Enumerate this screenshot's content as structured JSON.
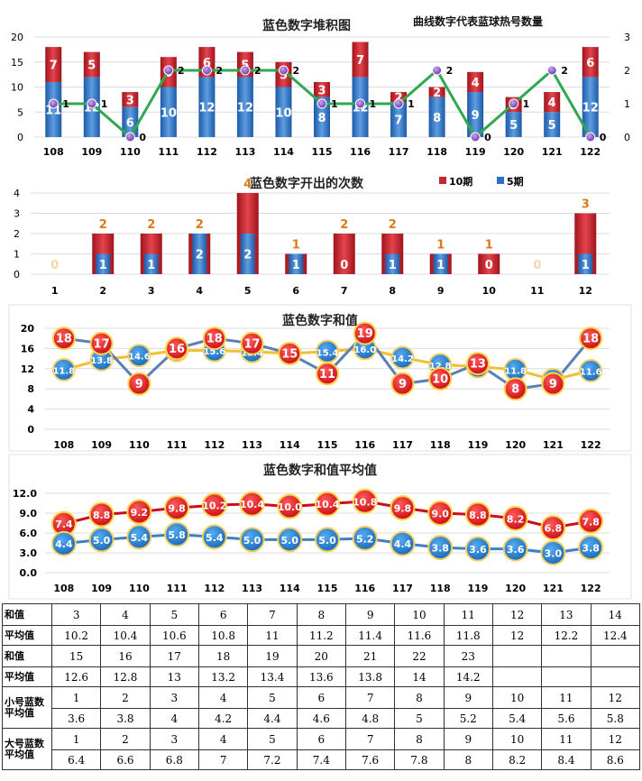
{
  "chart_data": [
    {
      "type": "bar",
      "title": "蓝色数字堆积图",
      "subtitle": "曲线数字代表蓝球热号数量",
      "categories": [
        "108",
        "109",
        "110",
        "111",
        "112",
        "113",
        "114",
        "115",
        "116",
        "117",
        "118",
        "119",
        "120",
        "121",
        "122"
      ],
      "ylim": [
        0,
        20
      ],
      "y_ticks": [
        "0",
        "5",
        "10",
        "15",
        "20"
      ],
      "y2lim": [
        0,
        3
      ],
      "y2_ticks": [
        "0",
        "1",
        "2",
        "3"
      ],
      "series": [
        {
          "values": [
            11,
            12,
            6,
            10,
            12,
            12,
            10,
            8,
            12,
            7,
            8,
            9,
            5,
            5,
            12
          ],
          "color": "#2f6fc0"
        },
        {
          "values": [
            7,
            5,
            3,
            6,
            6,
            5,
            5,
            3,
            7,
            2,
            2,
            4,
            3,
            4,
            6
          ],
          "color": "#c0282e"
        },
        {
          "type": "line",
          "axis": "right",
          "values": [
            1,
            1,
            0,
            2,
            2,
            2,
            2,
            1,
            1,
            1,
            2,
            0,
            1,
            2,
            0
          ],
          "color": "#2fa84f"
        }
      ]
    },
    {
      "type": "bar",
      "title": "蓝色数字开出的次数",
      "categories": [
        "1",
        "2",
        "3",
        "4",
        "5",
        "6",
        "7",
        "8",
        "9",
        "10",
        "11",
        "12"
      ],
      "ylim": [
        0,
        4
      ],
      "y_ticks": [
        "0",
        "1",
        "2",
        "3",
        "4"
      ],
      "series": [
        {
          "name": "10期",
          "values": [
            0,
            2,
            2,
            2,
            4,
            1,
            2,
            2,
            1,
            1,
            0,
            3
          ],
          "color": "#c0282e"
        },
        {
          "name": "5期",
          "values": [
            0,
            1,
            1,
            2,
            2,
            1,
            0,
            1,
            1,
            0,
            0,
            1
          ],
          "color": "#2f6fc0"
        }
      ]
    },
    {
      "type": "line",
      "title": "蓝色数字和值",
      "categories": [
        "108",
        "109",
        "110",
        "111",
        "112",
        "113",
        "114",
        "115",
        "116",
        "117",
        "118",
        "119",
        "120",
        "121",
        "122"
      ],
      "ylim": [
        0,
        20
      ],
      "y_ticks": [
        "0",
        "4",
        "8",
        "12",
        "16",
        "20"
      ],
      "series": [
        {
          "values": [
            11.8,
            13.8,
            14.6,
            15.6,
            15.6,
            15.4,
            15.0,
            15.4,
            16.0,
            14.2,
            12.8,
            12.4,
            11.8,
            9.8,
            11.6
          ],
          "color": "#f0c030"
        },
        {
          "values": [
            18,
            17,
            9,
            16,
            18,
            17,
            15,
            11,
            19,
            9,
            10,
            13,
            8,
            9,
            18
          ],
          "color": "#5a7fb5"
        }
      ]
    },
    {
      "type": "line",
      "title": "蓝色数字和值平均值",
      "categories": [
        "108",
        "109",
        "110",
        "111",
        "112",
        "113",
        "114",
        "115",
        "116",
        "117",
        "118",
        "119",
        "120",
        "121",
        "122"
      ],
      "ylim": [
        0,
        12
      ],
      "y_ticks": [
        "0.0",
        "3.0",
        "6.0",
        "9.0",
        "12.0"
      ],
      "series": [
        {
          "values": [
            7.4,
            8.8,
            9.2,
            9.8,
            10.2,
            10.4,
            10.0,
            10.4,
            10.8,
            9.8,
            9.0,
            8.8,
            8.2,
            6.8,
            7.8
          ],
          "color": "#c8101a"
        },
        {
          "values": [
            4.4,
            5.0,
            5.4,
            5.8,
            5.4,
            5.0,
            5.0,
            5.0,
            5.2,
            4.4,
            3.8,
            3.6,
            3.6,
            3.0,
            3.8
          ],
          "color": "#3f7fc8"
        }
      ]
    }
  ],
  "table": [
    {
      "label": "和值",
      "cells": [
        "3",
        "4",
        "5",
        "6",
        "7",
        "8",
        "9",
        "10",
        "11",
        "12",
        "13",
        "14"
      ]
    },
    {
      "label": "平均值",
      "cells": [
        "10.2",
        "10.4",
        "10.6",
        "10.8",
        "11",
        "11.2",
        "11.4",
        "11.6",
        "11.8",
        "12",
        "12.2",
        "12.4"
      ]
    },
    {
      "label": "和值",
      "cells": [
        "15",
        "16",
        "17",
        "18",
        "19",
        "20",
        "21",
        "22",
        "23",
        "",
        "",
        ""
      ]
    },
    {
      "label": "平均值",
      "cells": [
        "12.6",
        "12.8",
        "13",
        "13.2",
        "13.4",
        "13.6",
        "13.8",
        "14",
        "14.2",
        "",
        "",
        ""
      ]
    },
    {
      "label": "小号蓝数平均值",
      "label_lines": [
        "小号蓝数",
        "平均值"
      ],
      "cells": [
        "1",
        "2",
        "3",
        "4",
        "5",
        "6",
        "7",
        "8",
        "9",
        "10",
        "11",
        "12"
      ]
    },
    {
      "label": "",
      "cells": [
        "3.6",
        "3.8",
        "4",
        "4.2",
        "4.4",
        "4.6",
        "4.8",
        "5",
        "5.2",
        "5.4",
        "5.6",
        "5.8"
      ]
    },
    {
      "label": "大号蓝数平均值",
      "label_lines": [
        "大号蓝数",
        "平均值"
      ],
      "cells": [
        "1",
        "2",
        "3",
        "4",
        "5",
        "6",
        "7",
        "8",
        "9",
        "10",
        "11",
        "12"
      ]
    },
    {
      "label": "",
      "cells": [
        "6.4",
        "6.6",
        "6.8",
        "7",
        "7.2",
        "7.4",
        "7.6",
        "7.8",
        "8",
        "8.2",
        "8.4",
        "8.6"
      ]
    }
  ]
}
